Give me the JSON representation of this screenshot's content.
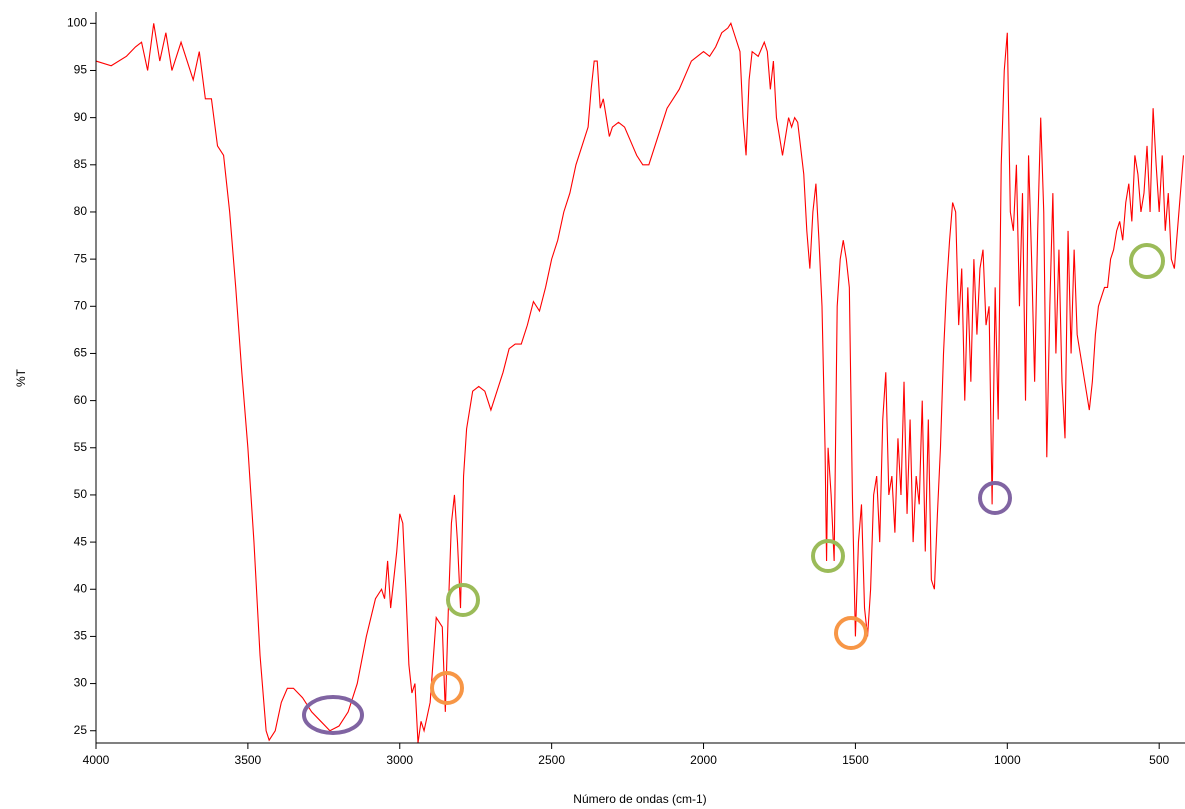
{
  "chart_data": {
    "type": "line",
    "x_label": "Número de ondas (cm-1)",
    "y_label": "%T",
    "xlim": [
      4000,
      415
    ],
    "xticks": [
      4000,
      3500,
      3000,
      2500,
      2000,
      1500,
      1000,
      500
    ],
    "ylim": [
      23.7,
      101.2
    ],
    "yticks": [
      25,
      30,
      35,
      40,
      45,
      50,
      55,
      60,
      65,
      70,
      75,
      80,
      85,
      90,
      95,
      100
    ],
    "series": [
      {
        "color": "#ff0000",
        "x": [
          4000,
          3950,
          3900,
          3870,
          3850,
          3830,
          3810,
          3790,
          3770,
          3750,
          3720,
          3700,
          3680,
          3660,
          3640,
          3620,
          3600,
          3580,
          3560,
          3540,
          3520,
          3500,
          3480,
          3460,
          3440,
          3430,
          3410,
          3390,
          3370,
          3350,
          3320,
          3290,
          3260,
          3230,
          3200,
          3170,
          3140,
          3110,
          3080,
          3060,
          3050,
          3040,
          3030,
          3010,
          3000,
          2990,
          2980,
          2970,
          2960,
          2950,
          2940,
          2930,
          2920,
          2900,
          2880,
          2860,
          2850,
          2840,
          2830,
          2820,
          2810,
          2800,
          2790,
          2780,
          2760,
          2740,
          2720,
          2700,
          2680,
          2660,
          2640,
          2620,
          2600,
          2580,
          2560,
          2540,
          2520,
          2500,
          2480,
          2460,
          2440,
          2420,
          2400,
          2380,
          2370,
          2360,
          2350,
          2340,
          2330,
          2320,
          2310,
          2300,
          2280,
          2260,
          2240,
          2220,
          2200,
          2180,
          2160,
          2140,
          2120,
          2100,
          2080,
          2060,
          2040,
          2020,
          2000,
          1980,
          1960,
          1940,
          1920,
          1910,
          1900,
          1880,
          1870,
          1860,
          1850,
          1840,
          1820,
          1800,
          1790,
          1780,
          1770,
          1760,
          1740,
          1720,
          1710,
          1700,
          1690,
          1670,
          1660,
          1650,
          1640,
          1630,
          1620,
          1610,
          1600,
          1595,
          1590,
          1580,
          1570,
          1560,
          1550,
          1540,
          1530,
          1520,
          1510,
          1500,
          1490,
          1480,
          1470,
          1460,
          1450,
          1440,
          1430,
          1420,
          1410,
          1400,
          1390,
          1380,
          1370,
          1360,
          1350,
          1340,
          1330,
          1320,
          1310,
          1300,
          1290,
          1280,
          1270,
          1260,
          1250,
          1240,
          1230,
          1220,
          1210,
          1200,
          1190,
          1180,
          1170,
          1160,
          1150,
          1140,
          1130,
          1120,
          1110,
          1100,
          1090,
          1080,
          1070,
          1060,
          1050,
          1040,
          1030,
          1020,
          1010,
          1000,
          990,
          980,
          970,
          960,
          950,
          940,
          930,
          920,
          910,
          900,
          890,
          880,
          870,
          860,
          850,
          840,
          830,
          820,
          810,
          800,
          790,
          780,
          770,
          760,
          750,
          740,
          730,
          720,
          710,
          700,
          690,
          680,
          670,
          660,
          650,
          640,
          630,
          620,
          610,
          600,
          590,
          580,
          570,
          560,
          550,
          540,
          530,
          520,
          510,
          500,
          490,
          480,
          470,
          460,
          450,
          440,
          430,
          420
        ],
        "values": [
          96,
          95.5,
          96.5,
          97.5,
          98,
          95,
          100,
          96,
          99,
          95,
          98,
          96,
          94,
          97,
          92,
          92,
          87,
          86,
          80,
          72,
          63,
          55,
          45,
          33,
          25,
          24,
          25,
          28,
          29.5,
          29.5,
          28.5,
          27,
          26,
          25,
          25.5,
          27,
          30,
          35,
          39,
          40,
          39,
          43,
          38,
          44,
          48,
          47,
          40,
          32,
          29,
          30,
          23.7,
          26,
          25,
          28,
          37,
          36,
          27,
          38,
          47,
          50,
          45,
          38,
          52,
          57,
          61,
          61.5,
          61,
          59,
          61,
          63,
          65.5,
          66,
          66,
          68,
          70.5,
          69.5,
          72,
          75,
          77,
          80,
          82,
          85,
          87,
          89,
          93,
          96,
          96,
          91,
          92,
          90,
          88,
          89,
          89.5,
          89,
          87.5,
          86,
          85,
          85,
          87,
          89,
          91,
          92,
          93,
          94.5,
          96,
          96.5,
          97,
          96.5,
          97.5,
          99,
          99.5,
          100,
          99,
          97,
          90,
          86,
          94,
          97,
          96.5,
          98,
          97,
          93,
          96,
          90,
          86,
          90,
          89,
          90,
          89.5,
          84,
          78,
          74,
          80,
          83,
          77,
          70,
          55,
          43,
          55,
          50,
          43,
          70,
          75,
          77,
          75,
          72,
          50,
          35,
          45,
          49,
          38,
          35,
          40,
          50,
          52,
          45,
          58,
          63,
          50,
          52,
          46,
          56,
          50,
          62,
          48,
          58,
          45,
          52,
          49,
          60,
          44,
          58,
          41,
          40,
          48,
          55,
          65,
          72,
          77,
          81,
          80,
          68,
          74,
          60,
          72,
          62,
          75,
          67,
          74,
          76,
          68,
          70,
          49,
          72,
          58,
          85,
          95,
          99,
          80,
          78,
          85,
          70,
          82,
          60,
          86,
          75,
          62,
          78,
          90,
          80,
          54,
          70,
          82,
          65,
          76,
          62,
          56,
          78,
          65,
          76,
          67,
          65,
          63,
          61,
          59,
          62,
          67,
          70,
          71,
          72,
          72,
          75,
          76,
          78,
          79,
          77,
          81,
          83,
          79,
          86,
          84,
          80,
          82,
          87,
          80,
          91,
          85,
          80,
          86,
          78,
          82,
          75,
          74,
          78,
          82,
          86
        ]
      }
    ]
  }
}
